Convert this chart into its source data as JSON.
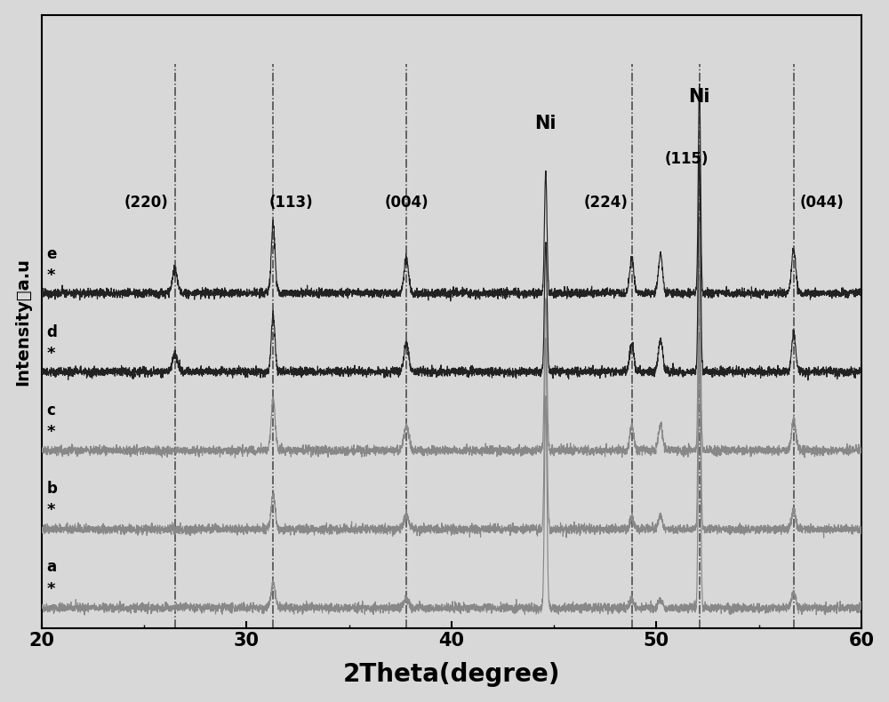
{
  "xlim": [
    20,
    60
  ],
  "xlabel": "2Theta(degree)",
  "ylabel": "Intensity（a.u",
  "x_ticks": [
    20,
    30,
    40,
    50,
    60
  ],
  "p220": 26.5,
  "p113": 31.3,
  "p004": 37.8,
  "pNi1": 44.6,
  "p224": 48.8,
  "p115": 50.2,
  "pNi2": 52.1,
  "p044": 56.7,
  "vlines": [
    26.5,
    31.3,
    37.8,
    48.8,
    52.1,
    56.7
  ],
  "curve_labels": [
    "a",
    "b",
    "c",
    "d",
    "e"
  ],
  "offsets": [
    0.0,
    0.18,
    0.36,
    0.54,
    0.72
  ],
  "noise_seed": 42,
  "background_color": "#d8d8d8",
  "axes_background": "#d8d8d8"
}
